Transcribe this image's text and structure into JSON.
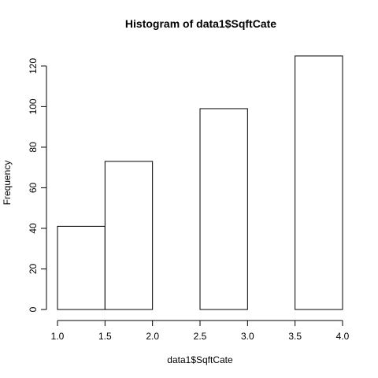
{
  "chart_data": {
    "type": "bar",
    "title": "Histogram of data1$SqftCate",
    "xlabel": "data1$SqftCate",
    "ylabel": "Frequency",
    "xlim": [
      1.0,
      4.0
    ],
    "ylim": [
      0,
      125
    ],
    "x_ticks": [
      "1.0",
      "1.5",
      "2.0",
      "2.5",
      "3.0",
      "3.5",
      "4.0"
    ],
    "y_ticks": [
      "0",
      "20",
      "40",
      "60",
      "80",
      "100",
      "120"
    ],
    "bins": [
      {
        "from": 1.0,
        "to": 1.5,
        "value": 41
      },
      {
        "from": 1.5,
        "to": 2.0,
        "value": 73
      },
      {
        "from": 2.0,
        "to": 2.5,
        "value": 0
      },
      {
        "from": 2.5,
        "to": 3.0,
        "value": 99
      },
      {
        "from": 3.0,
        "to": 3.5,
        "value": 0
      },
      {
        "from": 3.5,
        "to": 4.0,
        "value": 125
      }
    ],
    "grid": false,
    "legend": "none"
  }
}
